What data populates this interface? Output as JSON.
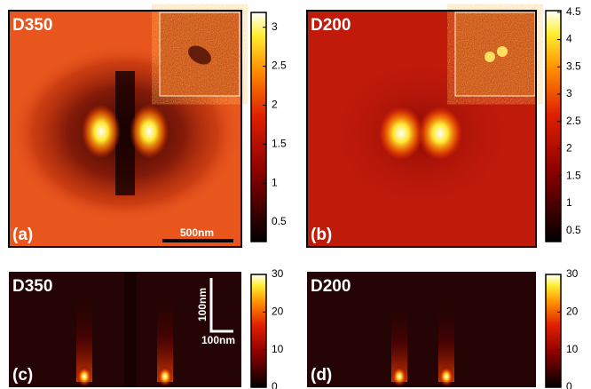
{
  "chart_data": [
    {
      "type": "heatmap",
      "title": "D350",
      "panel": "(a)",
      "annotations": [
        "500nm"
      ],
      "colormap": "hot",
      "clim": [
        0.25,
        3.19
      ],
      "ticks": [
        0.5,
        1,
        1.5,
        2,
        2.5,
        3
      ]
    },
    {
      "type": "heatmap",
      "title": "D200",
      "panel": "(b)",
      "colormap": "hot",
      "clim": [
        0.3,
        4.53
      ],
      "ticks": [
        0.5,
        1,
        1.5,
        2,
        2.5,
        3,
        3.5,
        4,
        4.5
      ]
    },
    {
      "type": "heatmap",
      "title": "D350",
      "panel": "(c)",
      "annotations": [
        "100nm",
        "100nm"
      ],
      "colormap": "hot",
      "clim": [
        0,
        30
      ],
      "ticks": [
        0,
        10,
        20,
        30
      ]
    },
    {
      "type": "heatmap",
      "title": "D200",
      "panel": "(d)",
      "colormap": "hot",
      "clim": [
        0,
        30
      ],
      "ticks": [
        0,
        10,
        20,
        30
      ]
    }
  ]
}
